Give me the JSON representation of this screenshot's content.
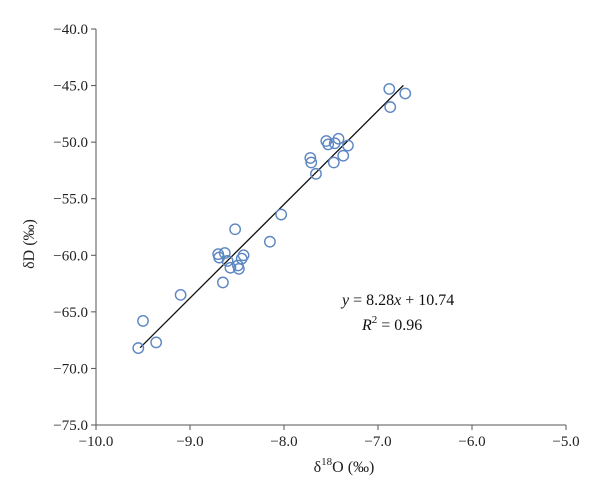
{
  "chart_data": {
    "type": "scatter",
    "title": "",
    "xlabel_prefix": "δ",
    "xlabel_sup": "18",
    "xlabel_suffix": "O (‰)",
    "ylabel": "δD (‰)",
    "xlim": [
      -10.0,
      -5.0
    ],
    "ylim": [
      -75.0,
      -40.0
    ],
    "x_ticks": [
      -10.0,
      -9.0,
      -8.0,
      -7.0,
      -6.0,
      -5.0
    ],
    "x_tick_labels": [
      "−10.0",
      "−9.0",
      "−8.0",
      "−7.0",
      "−6.0",
      "−5.0"
    ],
    "y_ticks": [
      -40.0,
      -45.0,
      -50.0,
      -55.0,
      -60.0,
      -65.0,
      -70.0,
      -75.0
    ],
    "y_tick_labels": [
      "−40.0",
      "−45.0",
      "−50.0",
      "−55.0",
      "−60.0",
      "−65.0",
      "−70.0",
      "−75.0"
    ],
    "grid": false,
    "marker_color": "#5b86c2",
    "series": [
      {
        "x": [
          -9.55,
          -9.5,
          -9.36,
          -9.1,
          -8.7,
          -8.69,
          -8.65,
          -8.63,
          -8.6,
          -8.57,
          -8.52,
          -8.49,
          -8.48,
          -8.45,
          -8.43,
          -8.15,
          -8.03,
          -7.72,
          -7.71,
          -7.66,
          -7.55,
          -7.53,
          -7.47,
          -7.46,
          -7.42,
          -7.37,
          -7.32,
          -6.88,
          -6.87,
          -6.71
        ],
        "y": [
          -68.2,
          -65.8,
          -67.7,
          -63.5,
          -59.9,
          -60.2,
          -62.4,
          -59.8,
          -60.5,
          -61.1,
          -57.7,
          -60.9,
          -61.2,
          -60.3,
          -60.0,
          -58.8,
          -56.4,
          -51.4,
          -51.8,
          -52.8,
          -49.9,
          -50.2,
          -51.8,
          -50.1,
          -49.7,
          -51.2,
          -50.3,
          -45.3,
          -46.9,
          -45.7
        ]
      }
    ],
    "trendline": {
      "slope": 8.28,
      "intercept": 10.74,
      "x_range": [
        -9.53,
        -6.73
      ]
    },
    "equation": {
      "y_var": "y",
      "equals_text": " = 8.28",
      "x_var": "x",
      "plus_text": " + 10.74",
      "r_var": "R",
      "r_sup": "2",
      "r_text": " = 0.96"
    }
  }
}
